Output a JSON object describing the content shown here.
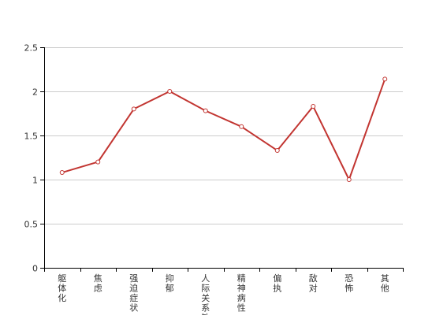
{
  "chart_data": {
    "type": "line",
    "categories": [
      "躯体化",
      "焦虑",
      "强迫症状",
      "抑郁",
      "人际关系敏",
      "精神病性",
      "偏执",
      "敌对",
      "恐怖",
      "其他"
    ],
    "series": [
      {
        "values": [
          1.08,
          1.2,
          1.8,
          2.0,
          1.78,
          1.6,
          1.33,
          1.83,
          1.0,
          2.14
        ]
      }
    ],
    "y_ticks": [
      "0",
      "0.5",
      "1",
      "1.5",
      "2",
      "2.5"
    ],
    "ylim": [
      0,
      2.5
    ],
    "grid": true,
    "colors": {
      "line": "#c23531",
      "grid": "#cccccc",
      "axis": "#000000",
      "point_fill": "#ffffff"
    }
  }
}
